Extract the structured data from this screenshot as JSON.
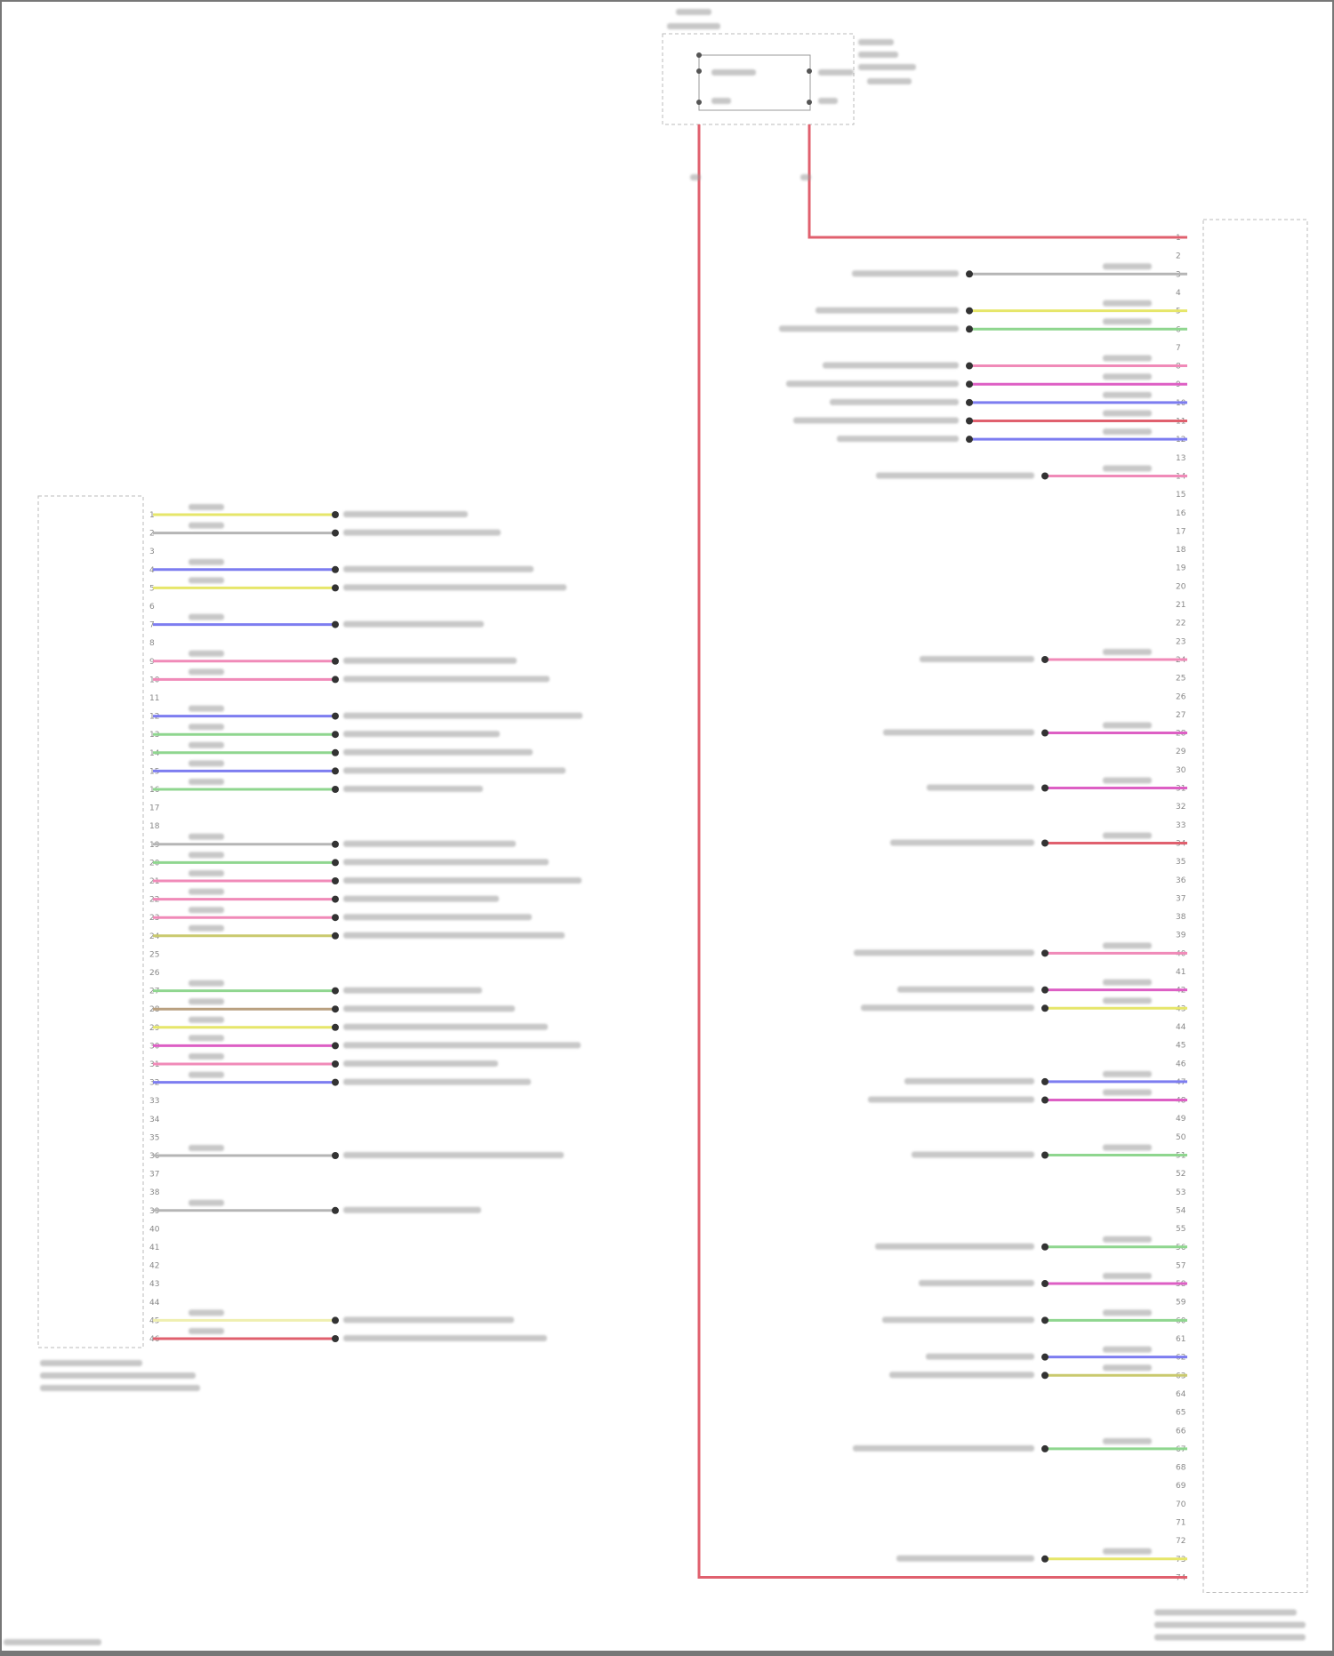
{
  "palette": {
    "yellow": "#e6e66a",
    "green": "#8fd68f",
    "pink": "#f08ab8",
    "magenta": "#dd5fc4",
    "blue": "#7d7df0",
    "red": "#e0606e",
    "gray": "#b5b5b5",
    "olive": "#c9c96e",
    "brown": "#b9a080",
    "lightyellow": "#efefb0"
  },
  "left_connector": {
    "pin_count": 46,
    "wires": [
      {
        "pin": 1,
        "color": "yellow"
      },
      {
        "pin": 2,
        "color": "gray"
      },
      {
        "pin": 4,
        "color": "blue"
      },
      {
        "pin": 5,
        "color": "yellow"
      },
      {
        "pin": 7,
        "color": "blue"
      },
      {
        "pin": 9,
        "color": "pink"
      },
      {
        "pin": 10,
        "color": "pink"
      },
      {
        "pin": 12,
        "color": "blue"
      },
      {
        "pin": 13,
        "color": "green"
      },
      {
        "pin": 14,
        "color": "green"
      },
      {
        "pin": 15,
        "color": "blue"
      },
      {
        "pin": 16,
        "color": "green"
      },
      {
        "pin": 19,
        "color": "gray"
      },
      {
        "pin": 20,
        "color": "green"
      },
      {
        "pin": 21,
        "color": "pink"
      },
      {
        "pin": 22,
        "color": "pink"
      },
      {
        "pin": 23,
        "color": "pink"
      },
      {
        "pin": 24,
        "color": "olive"
      },
      {
        "pin": 27,
        "color": "green"
      },
      {
        "pin": 28,
        "color": "brown"
      },
      {
        "pin": 29,
        "color": "yellow"
      },
      {
        "pin": 30,
        "color": "magenta"
      },
      {
        "pin": 31,
        "color": "pink"
      },
      {
        "pin": 32,
        "color": "blue"
      },
      {
        "pin": 36,
        "color": "gray"
      },
      {
        "pin": 39,
        "color": "gray"
      },
      {
        "pin": 45,
        "color": "lightyellow"
      },
      {
        "pin": 46,
        "color": "red"
      }
    ]
  },
  "right_connector": {
    "pin_count": 74,
    "wires": [
      {
        "pin": 3,
        "color": "gray"
      },
      {
        "pin": 5,
        "color": "yellow"
      },
      {
        "pin": 6,
        "color": "green"
      },
      {
        "pin": 8,
        "color": "pink"
      },
      {
        "pin": 9,
        "color": "magenta"
      },
      {
        "pin": 10,
        "color": "blue"
      },
      {
        "pin": 11,
        "color": "red"
      },
      {
        "pin": 12,
        "color": "blue"
      },
      {
        "pin": 14,
        "color": "pink"
      },
      {
        "pin": 24,
        "color": "pink"
      },
      {
        "pin": 28,
        "color": "magenta"
      },
      {
        "pin": 31,
        "color": "magenta"
      },
      {
        "pin": 34,
        "color": "red"
      },
      {
        "pin": 40,
        "color": "pink"
      },
      {
        "pin": 42,
        "color": "magenta"
      },
      {
        "pin": 43,
        "color": "yellow"
      },
      {
        "pin": 47,
        "color": "blue"
      },
      {
        "pin": 48,
        "color": "magenta"
      },
      {
        "pin": 51,
        "color": "green"
      },
      {
        "pin": 56,
        "color": "green"
      },
      {
        "pin": 58,
        "color": "magenta"
      },
      {
        "pin": 60,
        "color": "green"
      },
      {
        "pin": 62,
        "color": "blue"
      },
      {
        "pin": 63,
        "color": "olive"
      },
      {
        "pin": 67,
        "color": "green"
      },
      {
        "pin": 73,
        "color": "yellow"
      }
    ]
  },
  "power_feeds": [
    {
      "to_pin": 1,
      "color": "red"
    },
    {
      "to_pin": 74,
      "color": "red"
    }
  ]
}
